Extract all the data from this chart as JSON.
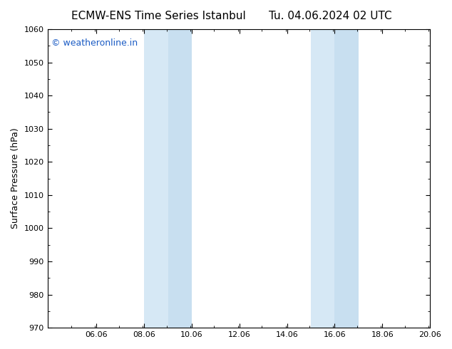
{
  "title_left": "ECMW-ENS Time Series Istanbul",
  "title_right": "Tu. 04.06.2024 02 UTC",
  "ylabel": "Surface Pressure (hPa)",
  "ylim": [
    970,
    1060
  ],
  "yticks": [
    970,
    980,
    990,
    1000,
    1010,
    1020,
    1030,
    1040,
    1050,
    1060
  ],
  "xlim": [
    4.0,
    20.06
  ],
  "xticks": [
    6.06,
    8.06,
    10.06,
    12.06,
    14.06,
    16.06,
    18.06,
    20.06
  ],
  "xtick_labels": [
    "06.06",
    "08.06",
    "10.06",
    "12.06",
    "14.06",
    "16.06",
    "18.06",
    "20.06"
  ],
  "background_color": "#ffffff",
  "plot_bg_color": "#ffffff",
  "shaded_bands": [
    {
      "x_start": 8.06,
      "x_end": 9.06,
      "color": "#d6e8f5"
    },
    {
      "x_start": 9.06,
      "x_end": 10.06,
      "color": "#c8dff0"
    },
    {
      "x_start": 15.06,
      "x_end": 16.06,
      "color": "#d6e8f5"
    },
    {
      "x_start": 16.06,
      "x_end": 17.06,
      "color": "#c8dff0"
    }
  ],
  "watermark_text": "© weatheronline.in",
  "watermark_color": "#1a5bc4",
  "watermark_fontsize": 9,
  "title_fontsize": 11,
  "tick_fontsize": 8,
  "ylabel_fontsize": 9,
  "border_color": "#000000"
}
